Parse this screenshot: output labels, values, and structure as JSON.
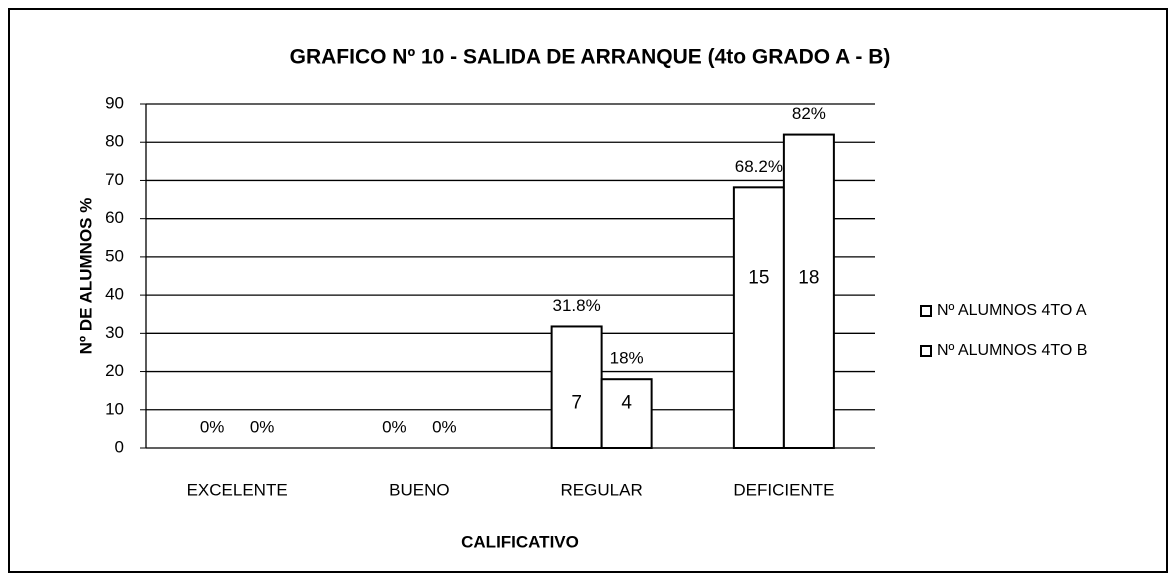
{
  "chart_data": {
    "type": "bar",
    "title": "GRAFICO Nº 10 - SALIDA DE ARRANQUE (4to GRADO A - B)",
    "x_label": "CALIFICATIVO",
    "y_label": "Nº DE ALUMNOS %",
    "categories": [
      "EXCELENTE",
      "BUENO",
      "REGULAR",
      "DEFICIENTE"
    ],
    "series": [
      {
        "name": "Nº ALUMNOS 4TO A",
        "color": "#ffffff",
        "values": [
          0,
          0,
          31.8,
          68.2
        ],
        "value_labels": [
          "0%",
          "0%",
          "31.8%",
          "68.2%"
        ],
        "counts": [
          null,
          null,
          7,
          15
        ]
      },
      {
        "name": "Nº ALUMNOS 4TO B",
        "color": "#ffffff",
        "values": [
          0,
          0,
          18,
          82
        ],
        "value_labels": [
          "0%",
          "0%",
          "18%",
          "82%"
        ],
        "counts": [
          null,
          null,
          4,
          18
        ]
      }
    ],
    "ylim": [
      0,
      90
    ],
    "yticks": [
      0,
      10,
      20,
      30,
      40,
      50,
      60,
      70,
      80,
      90
    ],
    "grid": true,
    "legend": "right"
  }
}
